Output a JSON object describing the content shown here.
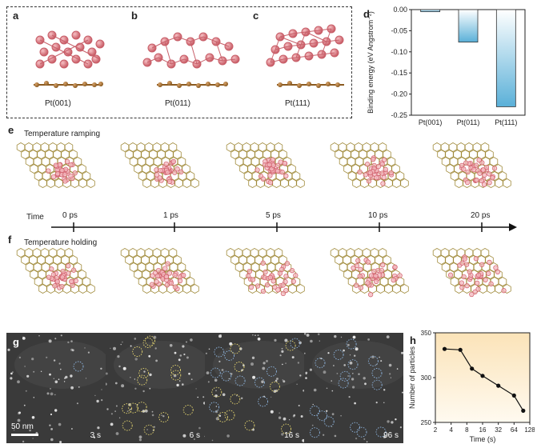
{
  "panels": {
    "a": {
      "label": "a",
      "caption": "Pt(001)"
    },
    "b": {
      "label": "b",
      "caption": "Pt(011)"
    },
    "c": {
      "label": "c",
      "caption": "Pt(111)"
    },
    "d": {
      "label": "d"
    },
    "e": {
      "label": "e",
      "title": "Temperature ramping"
    },
    "f": {
      "label": "f",
      "title": "Temperature holding"
    },
    "g": {
      "label": "g",
      "scale_bar": "50 nm",
      "frames": [
        "3 s",
        "6 s",
        "16 s",
        "96 s"
      ]
    },
    "h": {
      "label": "h"
    }
  },
  "timeline": {
    "label": "Time",
    "ticks": [
      "0 ps",
      "1 ps",
      "5 ps",
      "10 ps",
      "20 ps"
    ]
  },
  "colors": {
    "pt": "#e07880",
    "graphene": "#a08a3a",
    "bar": "#5ab0d8",
    "h_bg": "#fbe3b8"
  },
  "chart_data": [
    {
      "type": "bar",
      "panel": "d",
      "categories": [
        "Pt(001)",
        "Pt(011)",
        "Pt(111)"
      ],
      "values": [
        -0.005,
        -0.077,
        -0.23
      ],
      "ylabel": "Binding energy (eV Angstrom⁻²)",
      "ylim": [
        -0.25,
        0.0
      ],
      "yticks": [
        "0.00",
        "-0.05",
        "-0.10",
        "-0.15",
        "-0.20",
        "-0.25"
      ],
      "ytick_values": [
        0,
        -0.05,
        -0.1,
        -0.15,
        -0.2,
        -0.25
      ]
    },
    {
      "type": "line",
      "panel": "h",
      "x": [
        3,
        6,
        10,
        16,
        32,
        64,
        96
      ],
      "y": [
        332,
        331,
        310,
        302,
        291,
        280,
        263
      ],
      "xlabel": "Time (s)",
      "ylabel": "Number of particles",
      "xscale": "log2",
      "xticks": [
        "2",
        "4",
        "8",
        "16",
        "32",
        "64",
        "128"
      ],
      "xtick_values": [
        2,
        4,
        8,
        16,
        32,
        64,
        128
      ],
      "yticks": [
        "250",
        "300",
        "350"
      ],
      "ytick_values": [
        250,
        300,
        350
      ],
      "ylim": [
        250,
        350
      ]
    }
  ]
}
